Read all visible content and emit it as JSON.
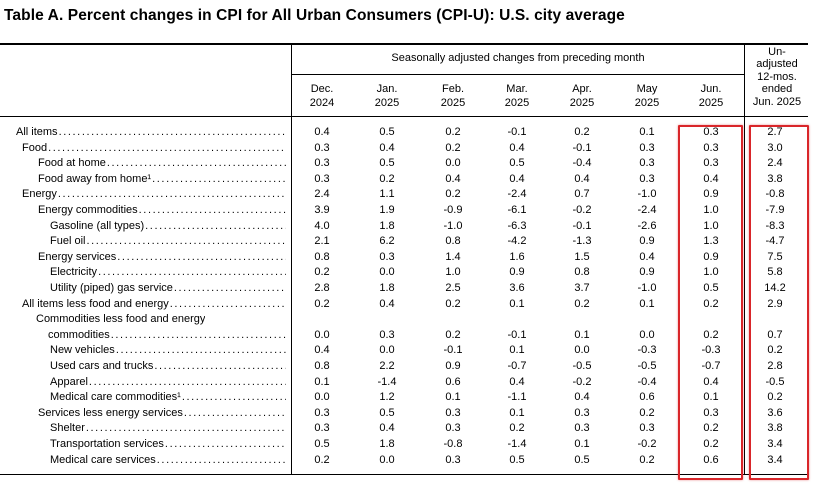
{
  "title": "Table A. Percent changes in CPI for All Urban Consumers (CPI-U): U.S. city average",
  "header": {
    "seasonal_label": "Seasonally adjusted changes from preceding month",
    "unadjusted_label": [
      "Un-",
      "adjusted",
      "12-mos.",
      "ended",
      "Jun. 2025"
    ],
    "columns": [
      [
        "Dec.",
        "2024"
      ],
      [
        "Jan.",
        "2025"
      ],
      [
        "Feb.",
        "2025"
      ],
      [
        "Mar.",
        "2025"
      ],
      [
        "Apr.",
        "2025"
      ],
      [
        "May",
        "2025"
      ],
      [
        "Jun.",
        "2025"
      ]
    ]
  },
  "rows": [
    {
      "label": "All items",
      "indent": 0,
      "values": [
        "0.4",
        "0.5",
        "0.2",
        "-0.1",
        "0.2",
        "0.1",
        "0.3",
        "2.7"
      ]
    },
    {
      "label": "Food",
      "indent": 1,
      "values": [
        "0.3",
        "0.4",
        "0.2",
        "0.4",
        "-0.1",
        "0.3",
        "0.3",
        "3.0"
      ]
    },
    {
      "label": "Food at home",
      "indent": 2,
      "values": [
        "0.3",
        "0.5",
        "0.0",
        "0.5",
        "-0.4",
        "0.3",
        "0.3",
        "2.4"
      ]
    },
    {
      "label": "Food away from home¹",
      "indent": 2,
      "values": [
        "0.3",
        "0.2",
        "0.4",
        "0.4",
        "0.4",
        "0.3",
        "0.4",
        "3.8"
      ]
    },
    {
      "label": "Energy",
      "indent": 1,
      "values": [
        "2.4",
        "1.1",
        "0.2",
        "-2.4",
        "0.7",
        "-1.0",
        "0.9",
        "-0.8"
      ]
    },
    {
      "label": "Energy commodities",
      "indent": 2,
      "values": [
        "3.9",
        "1.9",
        "-0.9",
        "-6.1",
        "-0.2",
        "-2.4",
        "1.0",
        "-7.9"
      ]
    },
    {
      "label": "Gasoline (all types)",
      "indent": 3,
      "values": [
        "4.0",
        "1.8",
        "-1.0",
        "-6.3",
        "-0.1",
        "-2.6",
        "1.0",
        "-8.3"
      ]
    },
    {
      "label": "Fuel oil",
      "indent": 3,
      "values": [
        "2.1",
        "6.2",
        "0.8",
        "-4.2",
        "-1.3",
        "0.9",
        "1.3",
        "-4.7"
      ]
    },
    {
      "label": "Energy services",
      "indent": 2,
      "values": [
        "0.8",
        "0.3",
        "1.4",
        "1.6",
        "1.5",
        "0.4",
        "0.9",
        "7.5"
      ]
    },
    {
      "label": "Electricity",
      "indent": 3,
      "values": [
        "0.2",
        "0.0",
        "1.0",
        "0.9",
        "0.8",
        "0.9",
        "1.0",
        "5.8"
      ]
    },
    {
      "label": "Utility (piped) gas service",
      "indent": 3,
      "values": [
        "2.8",
        "1.8",
        "2.5",
        "3.6",
        "3.7",
        "-1.0",
        "0.5",
        "14.2"
      ]
    },
    {
      "label": "All items less food and energy",
      "indent": 1,
      "values": [
        "0.2",
        "0.4",
        "0.2",
        "0.1",
        "0.2",
        "0.1",
        "0.2",
        "2.9"
      ]
    },
    {
      "label": "Commodities less food and energy",
      "indent": 2,
      "label2": "commodities",
      "values": [
        "0.0",
        "0.3",
        "0.2",
        "-0.1",
        "0.1",
        "0.0",
        "0.2",
        "0.7"
      ]
    },
    {
      "label": "New vehicles",
      "indent": 3,
      "values": [
        "0.4",
        "0.0",
        "-0.1",
        "0.1",
        "0.0",
        "-0.3",
        "-0.3",
        "0.2"
      ]
    },
    {
      "label": "Used cars and trucks",
      "indent": 3,
      "values": [
        "0.8",
        "2.2",
        "0.9",
        "-0.7",
        "-0.5",
        "-0.5",
        "-0.7",
        "2.8"
      ]
    },
    {
      "label": "Apparel",
      "indent": 3,
      "values": [
        "0.1",
        "-1.4",
        "0.6",
        "0.4",
        "-0.2",
        "-0.4",
        "0.4",
        "-0.5"
      ]
    },
    {
      "label": "Medical care commodities¹",
      "indent": 3,
      "values": [
        "0.0",
        "1.2",
        "0.1",
        "-1.1",
        "0.4",
        "0.6",
        "0.1",
        "0.2"
      ]
    },
    {
      "label": "Services less energy services",
      "indent": 2,
      "values": [
        "0.3",
        "0.5",
        "0.3",
        "0.1",
        "0.3",
        "0.2",
        "0.3",
        "3.6"
      ]
    },
    {
      "label": "Shelter",
      "indent": 3,
      "values": [
        "0.3",
        "0.4",
        "0.3",
        "0.2",
        "0.3",
        "0.3",
        "0.2",
        "3.8"
      ]
    },
    {
      "label": "Transportation services",
      "indent": 3,
      "values": [
        "0.5",
        "1.8",
        "-0.8",
        "-1.4",
        "0.1",
        "-0.2",
        "0.2",
        "3.4"
      ]
    },
    {
      "label": "Medical care services",
      "indent": 3,
      "values": [
        "0.2",
        "0.0",
        "0.3",
        "0.5",
        "0.5",
        "0.2",
        "0.6",
        "3.4"
      ]
    }
  ],
  "highlight_color": "#d9262a"
}
